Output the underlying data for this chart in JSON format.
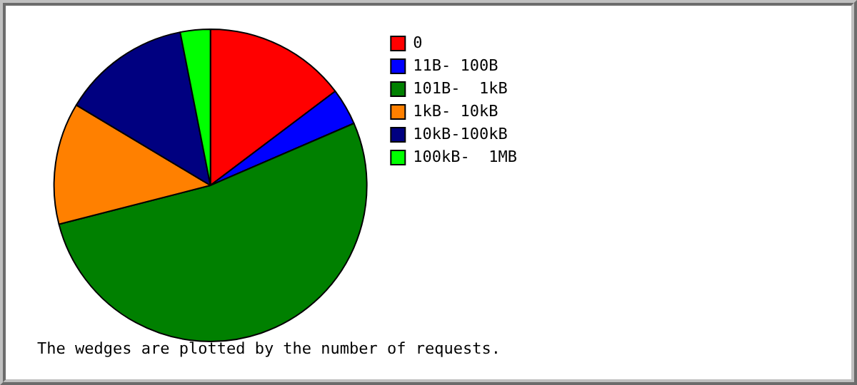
{
  "chart_data": {
    "type": "pie",
    "categories": [
      "0",
      "11B- 100B",
      "101B-  1kB",
      "1kB- 10kB",
      "10kB-100kB",
      "100kB-  1MB"
    ],
    "values": [
      14.7,
      3.8,
      52.5,
      12.6,
      13.3,
      3.1
    ],
    "colors": [
      "#ff0000",
      "#0000ff",
      "#008000",
      "#ff8000",
      "#000080",
      "#00ff00"
    ],
    "legend": "right",
    "annotations": [
      "The wedges are plotted by the number of requests."
    ]
  }
}
